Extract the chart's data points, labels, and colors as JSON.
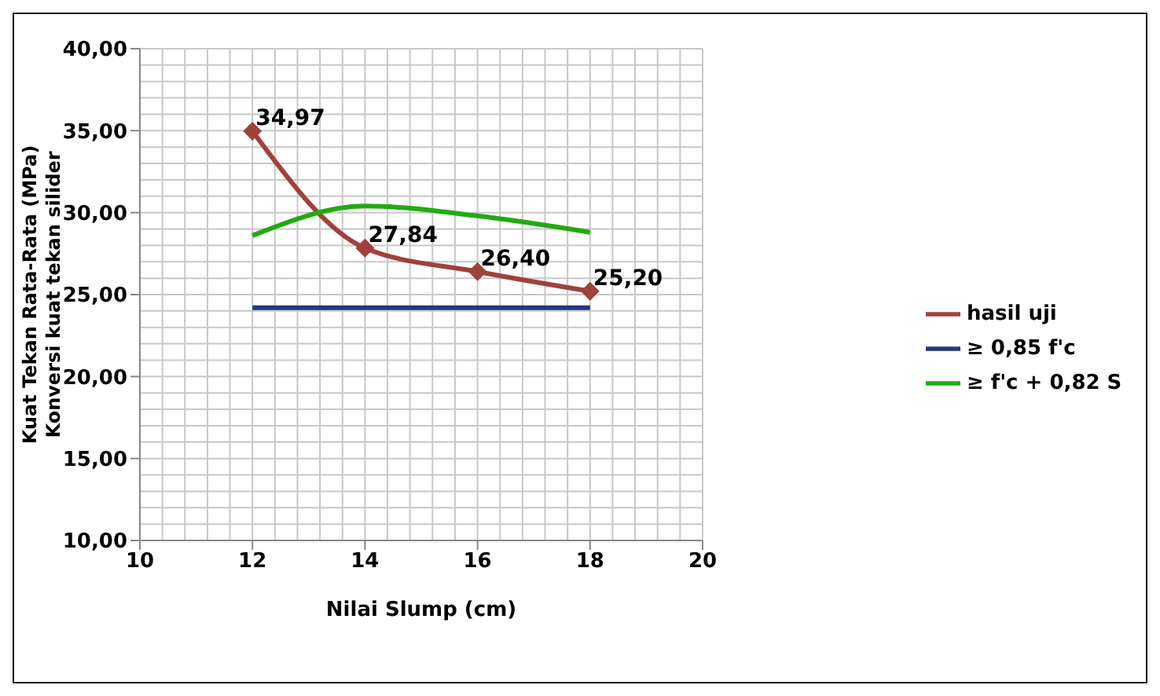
{
  "chart_data": {
    "type": "line",
    "xlabel": "Nilai Slump (cm)",
    "ylabel": "Kuat Tekan Rata-Rata  (MPa)\nKonversi kuat tekan silider",
    "x": [
      12,
      14,
      16,
      18
    ],
    "series": [
      {
        "name": "hasil uji",
        "color": "#a0413c",
        "values": [
          34.97,
          27.84,
          26.4,
          25.2
        ],
        "marker": "diamond",
        "value_labels": [
          "34,97",
          "27,84",
          "26,40",
          "25,20"
        ]
      },
      {
        "name": "≥ 0,85 f'c",
        "color": "#1f3a7a",
        "values": [
          24.2,
          24.2,
          24.2,
          24.2
        ],
        "marker": "none"
      },
      {
        "name": "≥ f'c + 0,82 S",
        "color": "#22aa11",
        "values": [
          28.6,
          30.4,
          29.8,
          28.8
        ],
        "marker": "none"
      }
    ],
    "xlim": [
      10,
      20
    ],
    "xticks": [
      10,
      12,
      14,
      16,
      18,
      20
    ],
    "ylim": [
      10,
      40
    ],
    "yticks": [
      {
        "value": 10,
        "label": "10,00"
      },
      {
        "value": 15,
        "label": "15,00"
      },
      {
        "value": 20,
        "label": "20,00"
      },
      {
        "value": 25,
        "label": "25,00"
      },
      {
        "value": 30,
        "label": "30,00"
      },
      {
        "value": 35,
        "label": "35,00"
      },
      {
        "value": 40,
        "label": "40,00"
      }
    ],
    "grid": true,
    "legend": "right"
  }
}
